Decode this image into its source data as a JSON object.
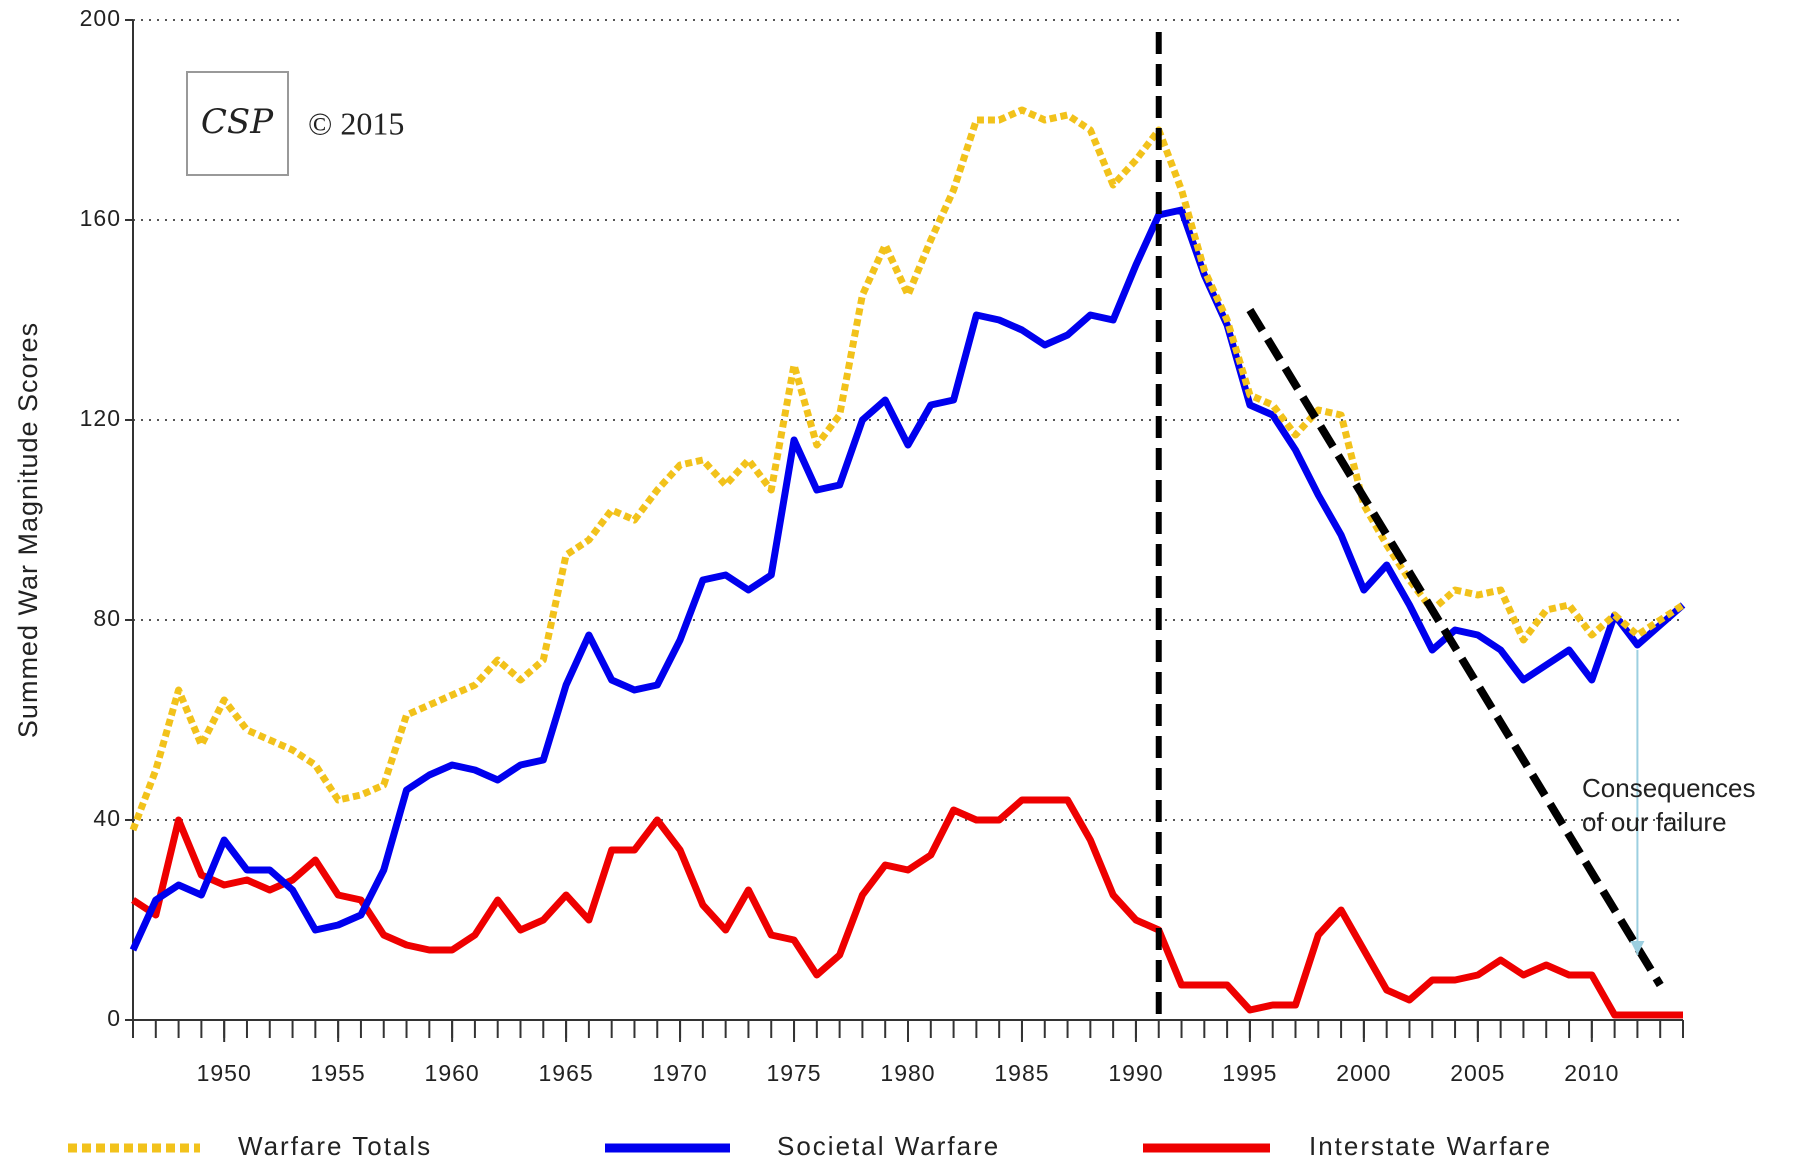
{
  "chart_data": {
    "type": "line",
    "ylabel": "Summed War Magnitude Scores",
    "logo": "CSP",
    "copyright": "© 2015",
    "annotation": [
      "Consequences",
      "of our failure"
    ],
    "x": [
      1946,
      1947,
      1948,
      1949,
      1950,
      1951,
      1952,
      1953,
      1954,
      1955,
      1956,
      1957,
      1958,
      1959,
      1960,
      1961,
      1962,
      1963,
      1964,
      1965,
      1966,
      1967,
      1968,
      1969,
      1970,
      1971,
      1972,
      1973,
      1974,
      1975,
      1976,
      1977,
      1978,
      1979,
      1980,
      1981,
      1982,
      1983,
      1984,
      1985,
      1986,
      1987,
      1988,
      1989,
      1990,
      1991,
      1992,
      1993,
      1994,
      1995,
      1996,
      1997,
      1998,
      1999,
      2000,
      2001,
      2002,
      2003,
      2004,
      2005,
      2006,
      2007,
      2008,
      2009,
      2010,
      2011,
      2012,
      2013,
      2014
    ],
    "series": [
      {
        "name": "Warfare Totals",
        "color": "#f2c21b",
        "dashed": true,
        "values": [
          38,
          50,
          66,
          55,
          64,
          58,
          56,
          54,
          51,
          44,
          45,
          47,
          61,
          63,
          65,
          67,
          72,
          68,
          72,
          93,
          96,
          102,
          100,
          106,
          111,
          112,
          107,
          112,
          106,
          131,
          115,
          121,
          145,
          155,
          145,
          156,
          166,
          180,
          180,
          182,
          180,
          181,
          178,
          167,
          172,
          178,
          166,
          150,
          140,
          125,
          123,
          117,
          122,
          121,
          103,
          95,
          88,
          82,
          86,
          85,
          86,
          76,
          82,
          83,
          77,
          81,
          77,
          80,
          83
        ]
      },
      {
        "name": "Societal Warfare",
        "color": "#0000ee",
        "dashed": false,
        "values": [
          14,
          24,
          27,
          25,
          36,
          30,
          30,
          26,
          18,
          19,
          21,
          30,
          46,
          49,
          51,
          50,
          48,
          51,
          52,
          67,
          77,
          68,
          66,
          67,
          76,
          88,
          89,
          86,
          89,
          116,
          106,
          107,
          120,
          124,
          115,
          123,
          124,
          141,
          140,
          138,
          135,
          137,
          141,
          140,
          151,
          161,
          162,
          149,
          139,
          123,
          121,
          114,
          105,
          97,
          86,
          91,
          83,
          74,
          78,
          77,
          74,
          68,
          71,
          74,
          68,
          81,
          75,
          79,
          83
        ]
      },
      {
        "name": "Interstate Warfare",
        "color": "#ee0000",
        "dashed": false,
        "values": [
          24,
          21,
          40,
          29,
          27,
          28,
          26,
          28,
          32,
          25,
          24,
          17,
          15,
          14,
          14,
          17,
          24,
          18,
          20,
          25,
          20,
          34,
          34,
          40,
          34,
          23,
          18,
          26,
          17,
          16,
          9,
          13,
          25,
          31,
          30,
          33,
          42,
          40,
          40,
          44,
          44,
          44,
          36,
          25,
          20,
          18,
          7,
          7,
          7,
          2,
          3,
          3,
          17,
          22,
          14,
          6,
          4,
          8,
          8,
          9,
          12,
          9,
          11,
          9,
          9,
          1,
          1,
          1,
          1
        ]
      }
    ],
    "vline": 1991,
    "trend_line": {
      "x": [
        1995,
        2013
      ],
      "y": [
        142,
        7
      ]
    },
    "arrow": {
      "x": 2012,
      "y": [
        74,
        13
      ]
    },
    "xlim": [
      1946,
      2014
    ],
    "xticks": [
      1950,
      1955,
      1960,
      1965,
      1970,
      1975,
      1980,
      1985,
      1990,
      1995,
      2000,
      2005,
      2010
    ],
    "ylim": [
      0,
      200
    ],
    "yticks": [
      0,
      40,
      80,
      120,
      160,
      200
    ],
    "grid": true,
    "legend": "bottom"
  }
}
